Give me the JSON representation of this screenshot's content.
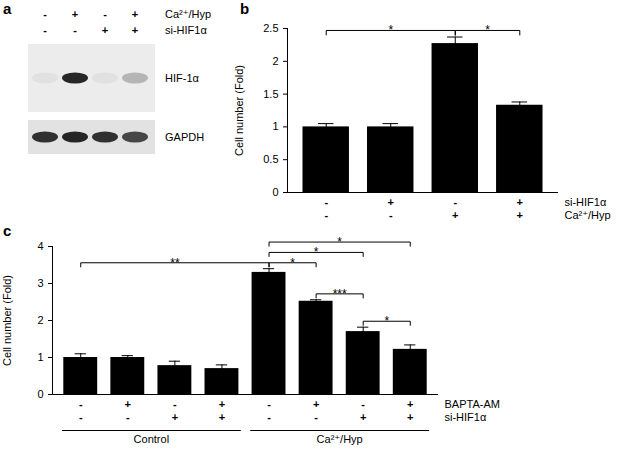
{
  "blot": {
    "panel": "a",
    "conditions": [
      {
        "label": "Ca²⁺/Hyp",
        "signs": [
          "-",
          "+",
          "-",
          "+"
        ]
      },
      {
        "label": "si-HIF1α",
        "signs": [
          "-",
          "-",
          "+",
          "+"
        ]
      }
    ],
    "bands": [
      {
        "label": "HIF-1α",
        "intensities": [
          0.05,
          0.9,
          0.05,
          0.25
        ]
      },
      {
        "label": "GAPDH",
        "intensities": [
          0.85,
          0.9,
          0.85,
          0.75
        ]
      }
    ]
  },
  "chart_data": [
    {
      "panel": "b",
      "type": "bar",
      "y_label": "Cell number (Fold)",
      "categories": [
        null,
        null,
        null,
        null
      ],
      "values": [
        1.0,
        1.0,
        2.27,
        1.33
      ],
      "errors": [
        0.05,
        0.05,
        0.1,
        0.05
      ],
      "color": "#000000",
      "ylim": [
        0,
        2.5
      ],
      "yticks": [
        0,
        0.5,
        1,
        1.5,
        2,
        2.5
      ],
      "conditions": [
        {
          "label": "si-HIF1α",
          "signs": [
            "-",
            "+",
            "-",
            "+"
          ]
        },
        {
          "label": "Ca²⁺/Hyp",
          "signs": [
            "-",
            "-",
            "+",
            "+"
          ]
        }
      ],
      "significance": [
        {
          "from": 0,
          "to": 2,
          "label": "*"
        },
        {
          "from": 2,
          "to": 3,
          "label": "*"
        }
      ]
    },
    {
      "panel": "c",
      "type": "bar",
      "y_label": "Cell number (Fold)",
      "categories": [
        null,
        null,
        null,
        null,
        null,
        null,
        null,
        null
      ],
      "values": [
        1.0,
        1.0,
        0.78,
        0.7,
        3.3,
        2.52,
        1.7,
        1.22
      ],
      "errors": [
        0.1,
        0.05,
        0.12,
        0.1,
        0.1,
        0.04,
        0.12,
        0.12
      ],
      "color": "#000000",
      "ylim": [
        0,
        4
      ],
      "yticks": [
        0,
        1,
        2,
        3,
        4
      ],
      "conditions": [
        {
          "label": "BAPTA-AM",
          "signs": [
            "-",
            "+",
            "-",
            "+",
            "-",
            "+",
            "-",
            "+"
          ]
        },
        {
          "label": "si-HIF1α",
          "signs": [
            "-",
            "-",
            "+",
            "+",
            "-",
            "-",
            "+",
            "+"
          ]
        }
      ],
      "groups": [
        {
          "label": "Control",
          "from": 0,
          "to": 3
        },
        {
          "label": "Ca²⁺/Hyp",
          "from": 4,
          "to": 7
        }
      ],
      "significance": [
        {
          "from": 0,
          "to": 4,
          "label": "**"
        },
        {
          "from": 4,
          "to": 5,
          "label": "*"
        },
        {
          "from": 4,
          "to": 6,
          "label": "*"
        },
        {
          "from": 4,
          "to": 7,
          "label": "*"
        },
        {
          "from": 5,
          "to": 6,
          "label": "***"
        },
        {
          "from": 6,
          "to": 7,
          "label": "*"
        }
      ]
    }
  ]
}
